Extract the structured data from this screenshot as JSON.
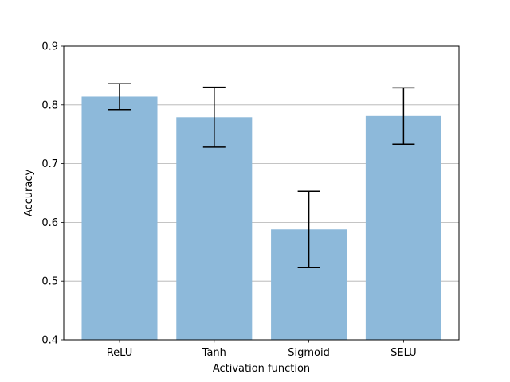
{
  "chart_data": {
    "type": "bar",
    "categories": [
      "ReLU",
      "Tanh",
      "Sigmoid",
      "SELU"
    ],
    "values": [
      0.814,
      0.779,
      0.588,
      0.781
    ],
    "error_low": [
      0.792,
      0.728,
      0.523,
      0.733
    ],
    "error_high": [
      0.836,
      0.83,
      0.653,
      0.829
    ],
    "title": "",
    "xlabel": "Activation function",
    "ylabel": "Accuracy",
    "ylim": [
      0.4,
      0.9
    ],
    "yticks": [
      "0.4",
      "0.5",
      "0.6",
      "0.7",
      "0.8",
      "0.9"
    ],
    "grid": "horizontal",
    "bar_color": "#8db9da",
    "error_color": "#000000"
  }
}
